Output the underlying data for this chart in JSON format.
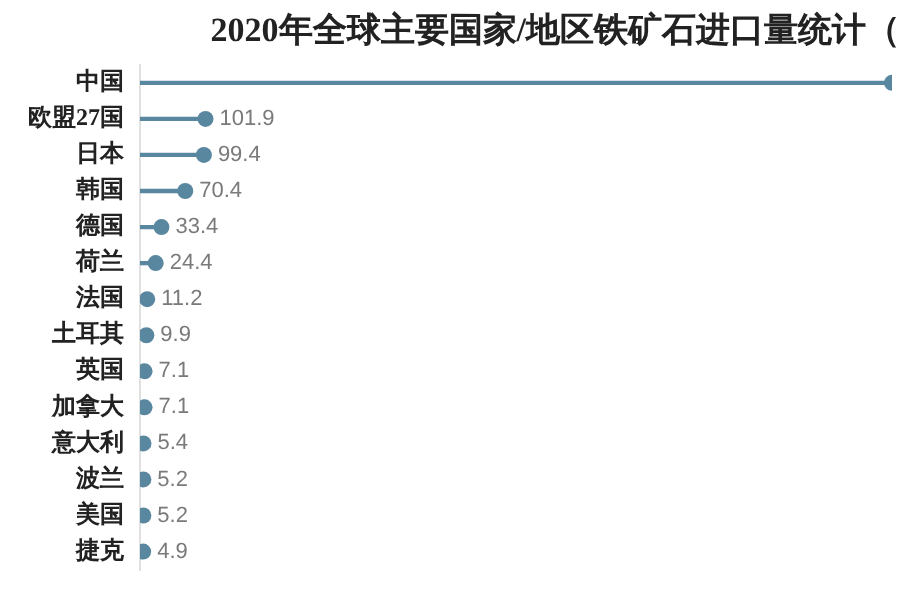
{
  "chart_data": {
    "type": "lollipop",
    "title": "2020年全球主要国家/地区铁矿石进口量统计（",
    "orientation": "horizontal",
    "categories": [
      "中国",
      "欧盟27国",
      "日本",
      "韩国",
      "德国",
      "荷兰",
      "法国",
      "土耳其",
      "英国",
      "加拿大",
      "意大利",
      "波兰",
      "美国",
      "捷克"
    ],
    "values": [
      1170,
      101.9,
      99.4,
      70.4,
      33.4,
      24.4,
      11.2,
      9.9,
      7.1,
      7.1,
      5.4,
      5.2,
      5.2,
      4.9
    ],
    "value_labels": [
      null,
      "101.9",
      "99.4",
      "70.4",
      "33.4",
      "24.4",
      "11.2",
      "9.9",
      "7.1",
      "7.1",
      "5.4",
      "5.2",
      "5.2",
      "4.9"
    ],
    "color": "#5a87a0",
    "xlim": [
      0,
      1170
    ],
    "tick_labels": "y",
    "grid": false,
    "legend": false,
    "marker": "circle"
  }
}
